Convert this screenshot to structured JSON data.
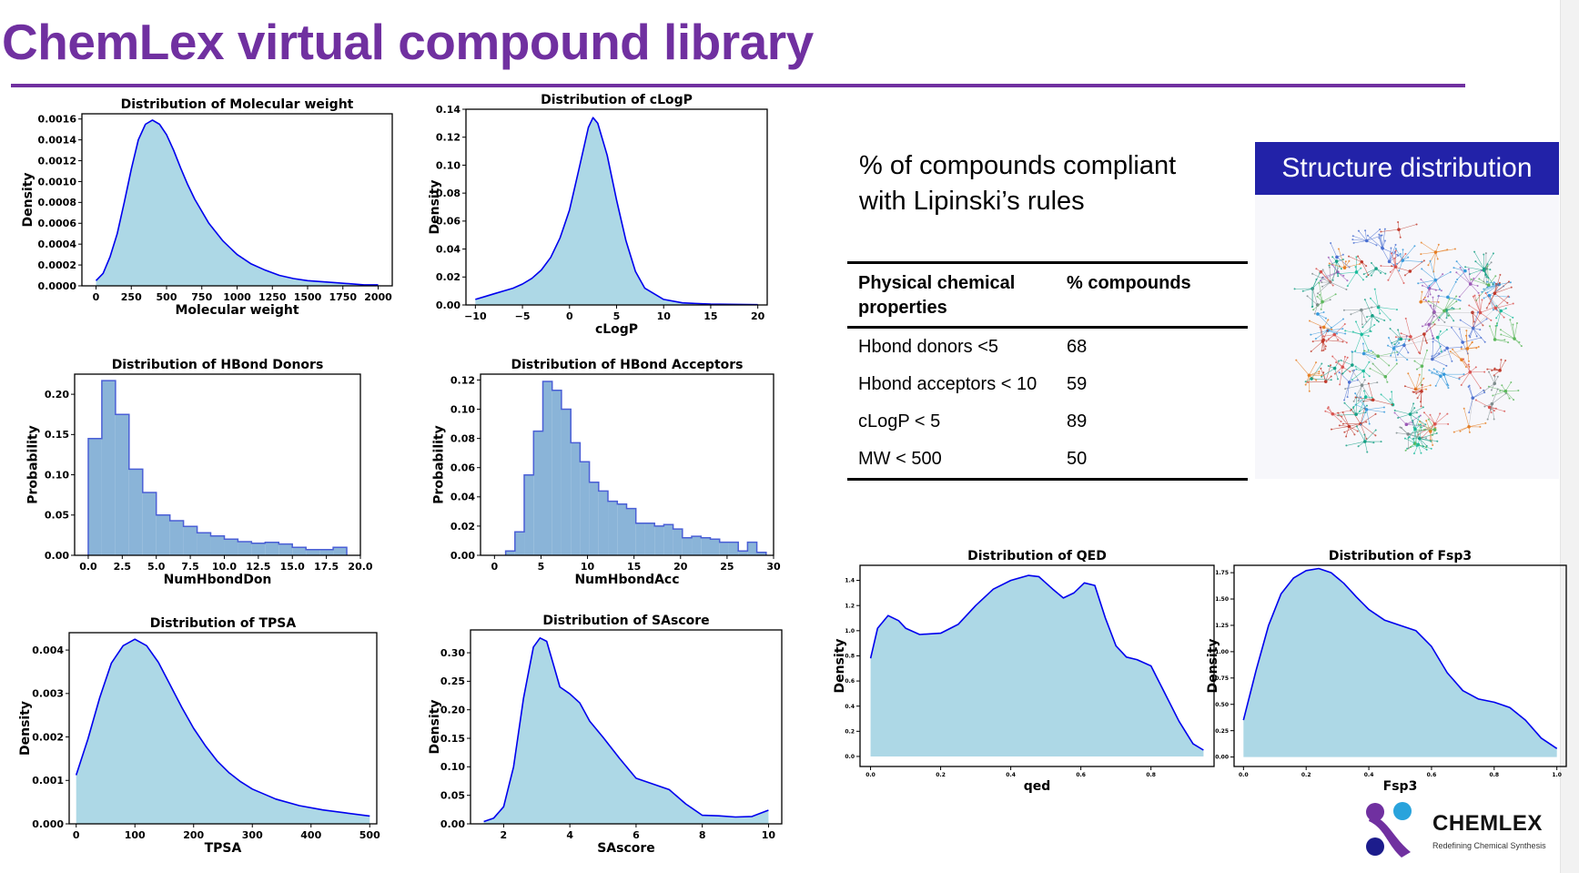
{
  "page": {
    "title": "ChemLex virtual compound library",
    "accent": "#7030a0"
  },
  "lipinski": {
    "heading_line1": "% of compounds compliant",
    "heading_line2": "with Lipinski’s rules",
    "col1": "Physical chemical properties",
    "col2": "% compounds",
    "rows": [
      {
        "property": "Hbond donors <5",
        "value": "68"
      },
      {
        "property": "Hbond acceptors < 10",
        "value": "59"
      },
      {
        "property": "cLogP < 5",
        "value": "89"
      },
      {
        "property": "MW < 500",
        "value": "50"
      }
    ]
  },
  "structure": {
    "title": "Structure distribution",
    "banner_color": "#2222a8"
  },
  "logo": {
    "name": "CHEMLEX",
    "tagline": "Redefining Chemical Synthesis"
  },
  "chart_data": [
    {
      "type": "area",
      "title": "Distribution of Molecular weight",
      "xlabel": "Molecular weight",
      "ylabel": "Density",
      "xlim": [
        -100,
        2100
      ],
      "ylim": [
        0,
        0.00165
      ],
      "xticks": [
        0,
        250,
        500,
        750,
        1000,
        1250,
        1500,
        1750,
        2000
      ],
      "xticklabels": [
        "0",
        "250",
        "500",
        "750",
        "1000",
        "1250",
        "1500",
        "1750",
        "2000"
      ],
      "yticks": [
        0,
        0.0002,
        0.0004,
        0.0006,
        0.0008,
        0.001,
        0.0012,
        0.0014,
        0.0016
      ],
      "yticklabels": [
        "0.0000",
        "0.0002",
        "0.0004",
        "0.0006",
        "0.0008",
        "0.0010",
        "0.0012",
        "0.0014",
        "0.0016"
      ],
      "x": [
        0,
        50,
        100,
        150,
        200,
        250,
        300,
        350,
        400,
        450,
        500,
        550,
        600,
        650,
        700,
        800,
        900,
        1000,
        1100,
        1200,
        1300,
        1400,
        1500,
        1600,
        1700,
        1800,
        1900,
        2000
      ],
      "y": [
        5e-05,
        0.00012,
        0.00028,
        0.0005,
        0.0008,
        0.00112,
        0.0014,
        0.00155,
        0.00159,
        0.00155,
        0.00145,
        0.0013,
        0.00113,
        0.00097,
        0.00083,
        0.0006,
        0.00043,
        0.0003,
        0.00021,
        0.00015,
        0.0001,
        7e-05,
        5e-05,
        4e-05,
        3e-05,
        2e-05,
        1e-05,
        1e-05
      ]
    },
    {
      "type": "area",
      "title": "Distribution of cLogP",
      "xlabel": "cLogP",
      "ylabel": "Density",
      "xlim": [
        -11,
        21
      ],
      "ylim": [
        0,
        0.14
      ],
      "xticks": [
        -10,
        -5,
        0,
        5,
        10,
        15,
        20
      ],
      "xticklabels": [
        "−10",
        "−5",
        "0",
        "5",
        "10",
        "15",
        "20"
      ],
      "yticks": [
        0,
        0.02,
        0.04,
        0.06,
        0.08,
        0.1,
        0.12,
        0.14
      ],
      "yticklabels": [
        "0.00",
        "0.02",
        "0.04",
        "0.06",
        "0.08",
        "0.10",
        "0.12",
        "0.14"
      ],
      "x": [
        -10,
        -9,
        -8,
        -7,
        -6,
        -5,
        -4,
        -3,
        -2,
        -1,
        0,
        1,
        2,
        2.5,
        3,
        4,
        5,
        6,
        7,
        8,
        10,
        12,
        15,
        20
      ],
      "y": [
        0.004,
        0.006,
        0.008,
        0.01,
        0.012,
        0.015,
        0.019,
        0.025,
        0.034,
        0.048,
        0.068,
        0.097,
        0.127,
        0.134,
        0.13,
        0.107,
        0.075,
        0.046,
        0.024,
        0.012,
        0.004,
        0.0015,
        0.0006,
        0.0002
      ]
    },
    {
      "type": "histogram",
      "title": "Distribution of HBond Donors",
      "xlabel": "NumHbondDon",
      "ylabel": "Probability",
      "xlim": [
        -1,
        20
      ],
      "ylim": [
        0,
        0.225
      ],
      "xticks": [
        0,
        2.5,
        5,
        7.5,
        10,
        12.5,
        15,
        17.5,
        20
      ],
      "xticklabels": [
        "0.0",
        "2.5",
        "5.0",
        "7.5",
        "10.0",
        "12.5",
        "15.0",
        "17.5",
        "20.0"
      ],
      "yticks": [
        0,
        0.05,
        0.1,
        0.15,
        0.2
      ],
      "yticklabels": [
        "0.00",
        "0.05",
        "0.10",
        "0.15",
        "0.20"
      ],
      "bin_edges": [
        0,
        1,
        2,
        3,
        4,
        5,
        6,
        7,
        8,
        9,
        10,
        11,
        12,
        13,
        14,
        15,
        16,
        17,
        18,
        19
      ],
      "values": [
        0.145,
        0.217,
        0.175,
        0.107,
        0.078,
        0.05,
        0.043,
        0.036,
        0.028,
        0.024,
        0.02,
        0.017,
        0.015,
        0.016,
        0.014,
        0.01,
        0.007,
        0.007,
        0.01
      ]
    },
    {
      "type": "histogram",
      "title": "Distribution of HBond Acceptors",
      "xlabel": "NumHbondAcc",
      "ylabel": "Probability",
      "xlim": [
        -1.5,
        30
      ],
      "ylim": [
        0,
        0.124
      ],
      "xticks": [
        0,
        5,
        10,
        15,
        20,
        25,
        30
      ],
      "xticklabels": [
        "0",
        "5",
        "10",
        "15",
        "20",
        "25",
        "30"
      ],
      "yticks": [
        0,
        0.02,
        0.04,
        0.06,
        0.08,
        0.1,
        0.12
      ],
      "yticklabels": [
        "0.00",
        "0.02",
        "0.04",
        "0.06",
        "0.08",
        "0.10",
        "0.12"
      ],
      "bin_edges": [
        1.2,
        2.2,
        3.2,
        4.2,
        5.2,
        6.2,
        7.2,
        8.2,
        9.2,
        10.2,
        11.2,
        12.2,
        13.2,
        14.2,
        15.2,
        16.2,
        17.2,
        18.2,
        19.2,
        20.2,
        21.2,
        22.2,
        23.2,
        24.2,
        25.2,
        26.2,
        27.2,
        28.2,
        29.2
      ],
      "values": [
        0.003,
        0.016,
        0.055,
        0.085,
        0.119,
        0.113,
        0.1,
        0.077,
        0.064,
        0.05,
        0.044,
        0.037,
        0.035,
        0.032,
        0.022,
        0.022,
        0.02,
        0.021,
        0.018,
        0.012,
        0.013,
        0.012,
        0.011,
        0.009,
        0.009,
        0.003,
        0.009,
        0.002
      ]
    },
    {
      "type": "area",
      "title": "Distribution of TPSA",
      "xlabel": "TPSA",
      "ylabel": "Density",
      "xlim": [
        -12,
        512
      ],
      "ylim": [
        0,
        0.0044
      ],
      "xticks": [
        0,
        100,
        200,
        300,
        400,
        500
      ],
      "xticklabels": [
        "0",
        "100",
        "200",
        "300",
        "400",
        "500"
      ],
      "yticks": [
        0,
        0.001,
        0.002,
        0.003,
        0.004
      ],
      "yticklabels": [
        "0.000",
        "0.001",
        "0.002",
        "0.003",
        "0.004"
      ],
      "x": [
        0,
        20,
        40,
        60,
        80,
        100,
        120,
        140,
        160,
        180,
        200,
        220,
        240,
        260,
        280,
        300,
        340,
        380,
        420,
        460,
        500
      ],
      "y": [
        0.00112,
        0.00195,
        0.0029,
        0.0037,
        0.0041,
        0.00425,
        0.0041,
        0.00372,
        0.0032,
        0.00268,
        0.0022,
        0.0018,
        0.00145,
        0.00118,
        0.00097,
        0.0008,
        0.00057,
        0.00042,
        0.00032,
        0.00025,
        0.00018
      ]
    },
    {
      "type": "area",
      "title": "Distribution of SAscore",
      "xlabel": "SAscore",
      "ylabel": "Density",
      "xlim": [
        1,
        10.4
      ],
      "ylim": [
        0,
        0.34
      ],
      "xticks": [
        2,
        4,
        6,
        8,
        10
      ],
      "xticklabels": [
        "2",
        "4",
        "6",
        "8",
        "10"
      ],
      "yticks": [
        0,
        0.05,
        0.1,
        0.15,
        0.2,
        0.25,
        0.3
      ],
      "yticklabels": [
        "0.00",
        "0.05",
        "0.10",
        "0.15",
        "0.20",
        "0.25",
        "0.30"
      ],
      "x": [
        1.4,
        1.7,
        2.0,
        2.3,
        2.6,
        2.9,
        3.1,
        3.3,
        3.5,
        3.7,
        4.0,
        4.3,
        4.6,
        5.0,
        5.5,
        6.0,
        6.5,
        7.0,
        7.5,
        8.0,
        8.5,
        9.0,
        9.5,
        10.0
      ],
      "y": [
        0.004,
        0.01,
        0.03,
        0.1,
        0.22,
        0.31,
        0.326,
        0.32,
        0.28,
        0.24,
        0.228,
        0.212,
        0.18,
        0.152,
        0.115,
        0.08,
        0.07,
        0.06,
        0.035,
        0.015,
        0.014,
        0.012,
        0.013,
        0.024
      ]
    },
    {
      "type": "area",
      "title": "Distribution of QED",
      "xlabel": "qed",
      "ylabel": "Density",
      "xlim": [
        -0.03,
        0.98
      ],
      "ylim": [
        -0.08,
        1.52
      ],
      "xticks": [
        0,
        0.2,
        0.4,
        0.6,
        0.8
      ],
      "xticklabels": [
        "0.0",
        "0.2",
        "0.4",
        "0.6",
        "0.8"
      ],
      "yticks": [
        0,
        0.2,
        0.4,
        0.6,
        0.8,
        1.0,
        1.2,
        1.4
      ],
      "yticklabels": [
        "0.0",
        "0.2",
        "0.4",
        "0.6",
        "0.8",
        "1.0",
        "1.2",
        "1.4"
      ],
      "x": [
        0.0,
        0.02,
        0.05,
        0.08,
        0.1,
        0.14,
        0.2,
        0.25,
        0.3,
        0.35,
        0.4,
        0.45,
        0.48,
        0.52,
        0.55,
        0.58,
        0.61,
        0.64,
        0.67,
        0.7,
        0.73,
        0.76,
        0.8,
        0.84,
        0.88,
        0.92,
        0.95
      ],
      "y": [
        0.78,
        1.02,
        1.12,
        1.08,
        1.02,
        0.97,
        0.98,
        1.05,
        1.2,
        1.33,
        1.4,
        1.44,
        1.43,
        1.33,
        1.26,
        1.3,
        1.38,
        1.36,
        1.1,
        0.88,
        0.79,
        0.77,
        0.72,
        0.5,
        0.28,
        0.1,
        0.05
      ]
    },
    {
      "type": "area",
      "title": "Distribution of Fsp3",
      "xlabel": "Fsp3",
      "ylabel": "Density",
      "xlim": [
        -0.03,
        1.03
      ],
      "ylim": [
        -0.09,
        1.82
      ],
      "xticks": [
        0,
        0.2,
        0.4,
        0.6,
        0.8,
        1.0
      ],
      "xticklabels": [
        "0.0",
        "0.2",
        "0.4",
        "0.6",
        "0.8",
        "1.0"
      ],
      "yticks": [
        0,
        0.25,
        0.5,
        0.75,
        1.0,
        1.25,
        1.5,
        1.75
      ],
      "yticklabels": [
        "0.00",
        "0.25",
        "0.50",
        "0.75",
        "1.00",
        "1.25",
        "1.50",
        "1.75"
      ],
      "x": [
        0.0,
        0.04,
        0.08,
        0.12,
        0.16,
        0.2,
        0.24,
        0.28,
        0.32,
        0.36,
        0.4,
        0.45,
        0.5,
        0.55,
        0.6,
        0.65,
        0.7,
        0.75,
        0.8,
        0.85,
        0.9,
        0.95,
        1.0
      ],
      "y": [
        0.35,
        0.82,
        1.25,
        1.55,
        1.7,
        1.77,
        1.79,
        1.75,
        1.65,
        1.52,
        1.4,
        1.3,
        1.25,
        1.2,
        1.05,
        0.8,
        0.63,
        0.55,
        0.52,
        0.47,
        0.35,
        0.18,
        0.08
      ]
    }
  ]
}
